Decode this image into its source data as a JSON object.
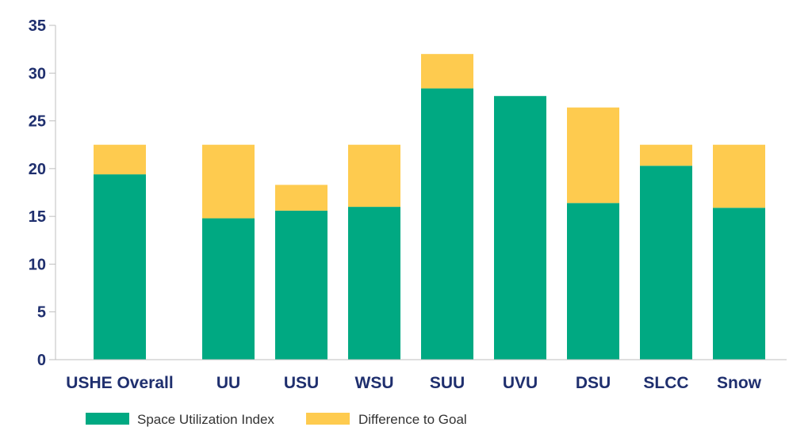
{
  "chart_data": {
    "type": "bar",
    "stacked": true,
    "categories": [
      "USHE Overall",
      "UU",
      "USU",
      "WSU",
      "SUU",
      "UVU",
      "DSU",
      "SLCC",
      "Snow"
    ],
    "series": [
      {
        "name": "Space Utilization Index",
        "color": "#00a982",
        "values": [
          19.4,
          14.8,
          15.6,
          16.0,
          28.4,
          27.6,
          16.4,
          20.3,
          15.9
        ]
      },
      {
        "name": "Difference to Goal",
        "color": "#fecb4f",
        "values": [
          3.1,
          7.7,
          2.7,
          6.5,
          3.6,
          0,
          10.0,
          2.2,
          6.6
        ]
      }
    ],
    "ylim": [
      0,
      35
    ],
    "yticks": [
      "0",
      "5",
      "10",
      "15",
      "20",
      "25",
      "30",
      "35"
    ],
    "legend_position": "bottom-left",
    "grid": false
  }
}
